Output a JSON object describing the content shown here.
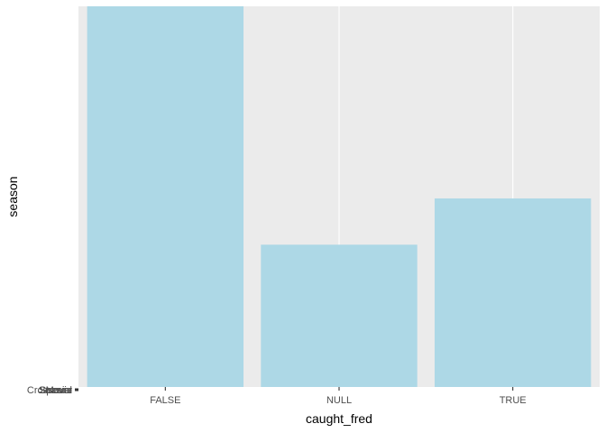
{
  "chart_data": {
    "type": "bar",
    "title": "",
    "xlabel": "caught_fred",
    "ylabel": "season",
    "categories": [
      "FALSE",
      "NULL",
      "TRUE"
    ],
    "values": [
      428,
      160,
      212
    ],
    "ylim": [
      0,
      428
    ],
    "y_tick_labels": [
      "Crossover",
      "Movie",
      "Season",
      "Special"
    ],
    "grid": true,
    "legend": "none",
    "colors": {
      "bar": "#ADD8E6",
      "panel": "#EBEBEB",
      "grid": "#FFFFFF",
      "text": "#4D4D4D"
    }
  }
}
